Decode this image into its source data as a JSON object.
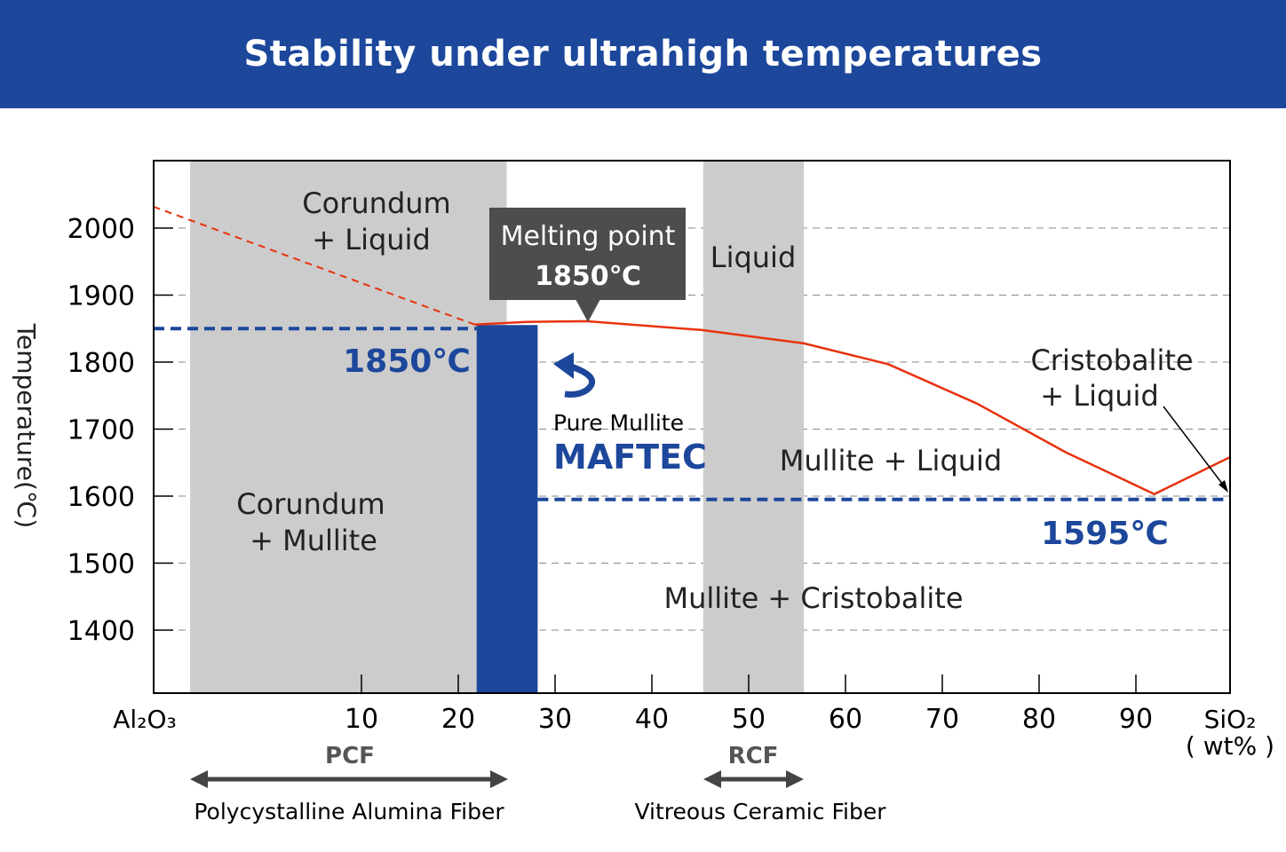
{
  "header": {
    "title": "Stability under ultrahigh temperatures"
  },
  "colors": {
    "header": "#1c479b",
    "band": "#cccccc",
    "mullite_bar": "#1c479b",
    "liquidus": "#e8320e",
    "dashed_blue": "#1c479b",
    "callout": "#4d4d4d"
  },
  "chart_data": {
    "type": "phase-diagram",
    "ylabel": "Temperature(℃)",
    "xunit": "( wt% )",
    "x_left_label": "Al₂O₃",
    "x_right_label": "SiO₂",
    "xticks": [
      10,
      20,
      30,
      40,
      50,
      60,
      70,
      80,
      90
    ],
    "yticks": [
      1400,
      1500,
      1600,
      1700,
      1800,
      1900,
      2000
    ],
    "xlim": [
      -11.5,
      100
    ],
    "ylim": [
      1306,
      2100
    ],
    "grid": "horizontal dashed",
    "liquidus_dashed": [
      [
        -11.5,
        2032
      ],
      [
        21.7,
        1856
      ]
    ],
    "liquidus": [
      [
        21.7,
        1856
      ],
      [
        27,
        1860
      ],
      [
        33.2,
        1861
      ],
      [
        45.1,
        1848
      ],
      [
        55.7,
        1828
      ],
      [
        64.4,
        1797
      ],
      [
        73.6,
        1738
      ],
      [
        82.8,
        1665
      ],
      [
        91.9,
        1603
      ],
      [
        99.7,
        1658
      ]
    ],
    "bands": [
      {
        "name": "PCF",
        "from": -7.7,
        "to": 25,
        "desc": "Polycystalline Alumina Fiber"
      },
      {
        "name": "RCF",
        "from": 45.3,
        "to": 55.7,
        "desc": "Vitreous Ceramic Fiber"
      }
    ],
    "mullite_bar": {
      "from": 21.9,
      "to": 28.2,
      "top": 1850
    },
    "hlines": [
      {
        "value": 1850,
        "label": "1850℃",
        "from": -11.5,
        "to": 21.9
      },
      {
        "value": 1595,
        "label": "1595℃",
        "from": 28.2,
        "to": 100
      }
    ],
    "regions": {
      "corundum_liquid": [
        "Corundum",
        "+ Liquid"
      ],
      "corundum_mullite": [
        "Corundum",
        "+  Mullite"
      ],
      "liquid": "Liquid",
      "cristobalite_liquid": [
        "Cristobalite",
        "+  Liquid"
      ],
      "mullite_liquid": "Mullite + Liquid",
      "mullite_cristobalite": "Mullite + Cristobalite"
    },
    "callout": {
      "line1": "Melting point",
      "line2": "1850℃"
    },
    "product": {
      "sub": "Pure Mullite",
      "name": "MAFTEC"
    }
  }
}
